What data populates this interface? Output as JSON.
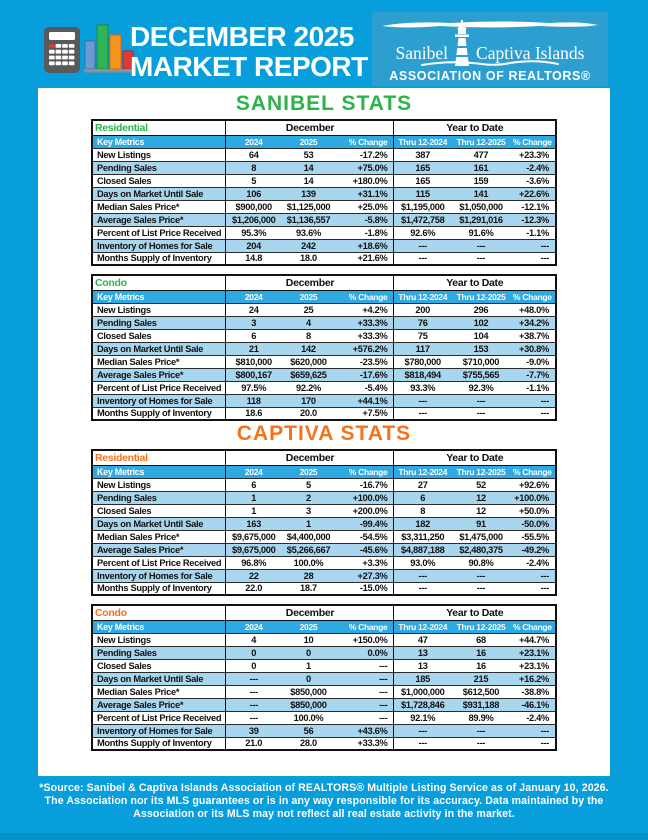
{
  "header": {
    "title_line1": "DECEMBER 2025",
    "title_line2": "MARKET REPORT",
    "logo": {
      "name_left": "Sanibel",
      "name_right": "Captiva Islands",
      "subtitle": "ASSOCIATION OF REALTORS®"
    }
  },
  "table_headers": {
    "month_group": "December",
    "ytd_group": "Year to Date",
    "columns": [
      "Key Metrics",
      "2024",
      "2025",
      "% Change",
      "Thru 12-2024",
      "Thru 12-2025",
      "% Change"
    ]
  },
  "sections": [
    {
      "title": "SANIBEL STATS",
      "accent": "#2DB34B",
      "tables": [
        {
          "property_type": "Residential",
          "rows": [
            [
              "New Listings",
              "64",
              "53",
              "-17.2%",
              "387",
              "477",
              "+23.3%"
            ],
            [
              "Pending Sales",
              "8",
              "14",
              "+75.0%",
              "165",
              "161",
              "-2.4%"
            ],
            [
              "Closed Sales",
              "5",
              "14",
              "+180.0%",
              "165",
              "159",
              "-3.6%"
            ],
            [
              "Days on Market Until Sale",
              "106",
              "139",
              "+31.1%",
              "115",
              "141",
              "+22.6%"
            ],
            [
              "Median Sales Price*",
              "$900,000",
              "$1,125,000",
              "+25.0%",
              "$1,195,000",
              "$1,050,000",
              "-12.1%"
            ],
            [
              "Average Sales Price*",
              "$1,206,000",
              "$1,136,557",
              "-5.8%",
              "$1,472,758",
              "$1,291,016",
              "-12.3%"
            ],
            [
              "Percent of List Price Received",
              "95.3%",
              "93.6%",
              "-1.8%",
              "92.6%",
              "91.6%",
              "-1.1%"
            ],
            [
              "Inventory of Homes for Sale",
              "204",
              "242",
              "+18.6%",
              "---",
              "---",
              "---"
            ],
            [
              "Months Supply of Inventory",
              "14.8",
              "18.0",
              "+21.6%",
              "---",
              "---",
              "---"
            ]
          ]
        },
        {
          "property_type": "Condo",
          "rows": [
            [
              "New Listings",
              "24",
              "25",
              "+4.2%",
              "200",
              "296",
              "+48.0%"
            ],
            [
              "Pending Sales",
              "3",
              "4",
              "+33.3%",
              "76",
              "102",
              "+34.2%"
            ],
            [
              "Closed Sales",
              "6",
              "8",
              "+33.3%",
              "75",
              "104",
              "+38.7%"
            ],
            [
              "Days on Market Until Sale",
              "21",
              "142",
              "+576.2%",
              "117",
              "153",
              "+30.8%"
            ],
            [
              "Median Sales Price*",
              "$810,000",
              "$620,000",
              "-23.5%",
              "$780,000",
              "$710,000",
              "-9.0%"
            ],
            [
              "Average Sales Price*",
              "$800,167",
              "$659,625",
              "-17.6%",
              "$818,494",
              "$755,565",
              "-7.7%"
            ],
            [
              "Percent of List Price Received",
              "97.5%",
              "92.2%",
              "-5.4%",
              "93.3%",
              "92.3%",
              "-1.1%"
            ],
            [
              "Inventory of Homes for Sale",
              "118",
              "170",
              "+44.1%",
              "---",
              "---",
              "---"
            ],
            [
              "Months Supply of Inventory",
              "18.6",
              "20.0",
              "+7.5%",
              "---",
              "---",
              "---"
            ]
          ]
        }
      ]
    },
    {
      "title": "CAPTIVA STATS",
      "accent": "#F4731C",
      "tables": [
        {
          "property_type": "Residential",
          "rows": [
            [
              "New Listings",
              "6",
              "5",
              "-16.7%",
              "27",
              "52",
              "+92.6%"
            ],
            [
              "Pending Sales",
              "1",
              "2",
              "+100.0%",
              "6",
              "12",
              "+100.0%"
            ],
            [
              "Closed Sales",
              "1",
              "3",
              "+200.0%",
              "8",
              "12",
              "+50.0%"
            ],
            [
              "Days on Market Until Sale",
              "163",
              "1",
              "-99.4%",
              "182",
              "91",
              "-50.0%"
            ],
            [
              "Median Sales Price*",
              "$9,675,000",
              "$4,400,000",
              "-54.5%",
              "$3,311,250",
              "$1,475,000",
              "-55.5%"
            ],
            [
              "Average Sales Price*",
              "$9,675,000",
              "$5,266,667",
              "-45.6%",
              "$4,887,188",
              "$2,480,375",
              "-49.2%"
            ],
            [
              "Percent of List Price Received",
              "96.8%",
              "100.0%",
              "+3.3%",
              "93.0%",
              "90.8%",
              "-2.4%"
            ],
            [
              "Inventory of Homes for Sale",
              "22",
              "28",
              "+27.3%",
              "---",
              "---",
              "---"
            ],
            [
              "Months Supply of Inventory",
              "22.0",
              "18.7",
              "-15.0%",
              "---",
              "---",
              "---"
            ]
          ]
        },
        {
          "property_type": "Condo",
          "rows": [
            [
              "New Listings",
              "4",
              "10",
              "+150.0%",
              "47",
              "68",
              "+44.7%"
            ],
            [
              "Pending Sales",
              "0",
              "0",
              "0.0%",
              "13",
              "16",
              "+23.1%"
            ],
            [
              "Closed Sales",
              "0",
              "1",
              "---",
              "13",
              "16",
              "+23.1%"
            ],
            [
              "Days on Market Until Sale",
              "---",
              "0",
              "---",
              "185",
              "215",
              "+16.2%"
            ],
            [
              "Median Sales Price*",
              "---",
              "$850,000",
              "---",
              "$1,000,000",
              "$612,500",
              "-38.8%"
            ],
            [
              "Average Sales Price*",
              "---",
              "$850,000",
              "---",
              "$1,728,846",
              "$931,188",
              "-46.1%"
            ],
            [
              "Percent of List Price Received",
              "---",
              "100.0%",
              "---",
              "92.1%",
              "89.9%",
              "-2.4%"
            ],
            [
              "Inventory of Homes for Sale",
              "39",
              "56",
              "+43.6%",
              "---",
              "---",
              "---"
            ],
            [
              "Months Supply of Inventory",
              "21.0",
              "28.0",
              "+33.3%",
              "---",
              "---",
              "---"
            ]
          ]
        }
      ]
    }
  ],
  "footer": {
    "lines": [
      "*Source: Sanibel & Captiva Islands Association of REALTORS® Multiple Listing Service as of January 10, 2026.",
      "The Association nor its MLS guarantees or is in any way responsible for its accuracy. Data maintained by the",
      "Association or its MLS may not reflect all real estate activity in the market."
    ]
  },
  "colors": {
    "background_blue": "#089EDB",
    "key_metrics_row_blue": "#2FA9E1",
    "stripe_light_blue": "#A9D6EF",
    "sanibel_green": "#2DB34B",
    "captiva_orange": "#F4731C",
    "logo_box_blue": "#2C9FD0",
    "bottom_strip_blue": "#0890C8"
  }
}
